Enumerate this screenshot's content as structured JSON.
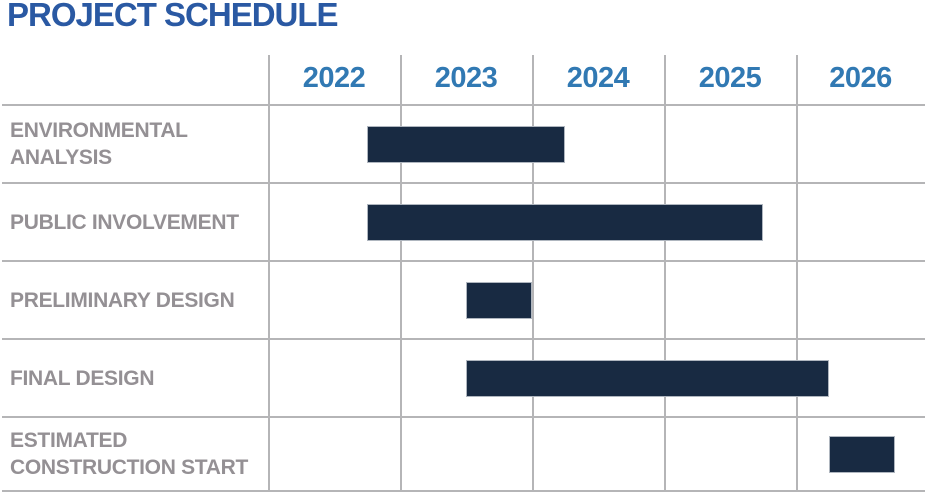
{
  "page": {
    "title": "PROJECT SCHEDULE"
  },
  "colors": {
    "background": "#FFFFFF",
    "title_blue": "#2A59A3",
    "year_blue": "#3179B3",
    "label_gray": "#949094",
    "bar_navy": "#182A42",
    "bar_border": "#AFB6BF",
    "gridline_gray": "#B5B5B7"
  },
  "chart_data": {
    "type": "bar",
    "variant": "gantt",
    "title": "PROJECT SCHEDULE",
    "xlabel": "",
    "ylabel": "",
    "x_axis": {
      "tick_labels": [
        "2022",
        "2023",
        "2024",
        "2025",
        "2026"
      ],
      "tick_unit": "year",
      "range": [
        2022,
        2027
      ]
    },
    "grid": {
      "vertical": true,
      "horizontal": true
    },
    "legend": "none",
    "tasks": [
      {
        "label": "ENVIRONMENTAL ANALYSIS",
        "label_lines": [
          "ENVIRONMENTAL",
          "ANALYSIS"
        ],
        "start": 2022.75,
        "end": 2024.25
      },
      {
        "label": "PUBLIC INVOLVEMENT",
        "label_lines": [
          "PUBLIC INVOLVEMENT"
        ],
        "start": 2022.75,
        "end": 2025.75
      },
      {
        "label": "PRELIMINARY DESIGN",
        "label_lines": [
          "PRELIMINARY DESIGN"
        ],
        "start": 2023.5,
        "end": 2024.0
      },
      {
        "label": "FINAL DESIGN",
        "label_lines": [
          "FINAL DESIGN"
        ],
        "start": 2023.5,
        "end": 2026.25
      },
      {
        "label": "ESTIMATED CONSTRUCTION START",
        "label_lines": [
          "ESTIMATED",
          "CONSTRUCTION START"
        ],
        "start": 2026.25,
        "end": 2026.75
      }
    ]
  }
}
